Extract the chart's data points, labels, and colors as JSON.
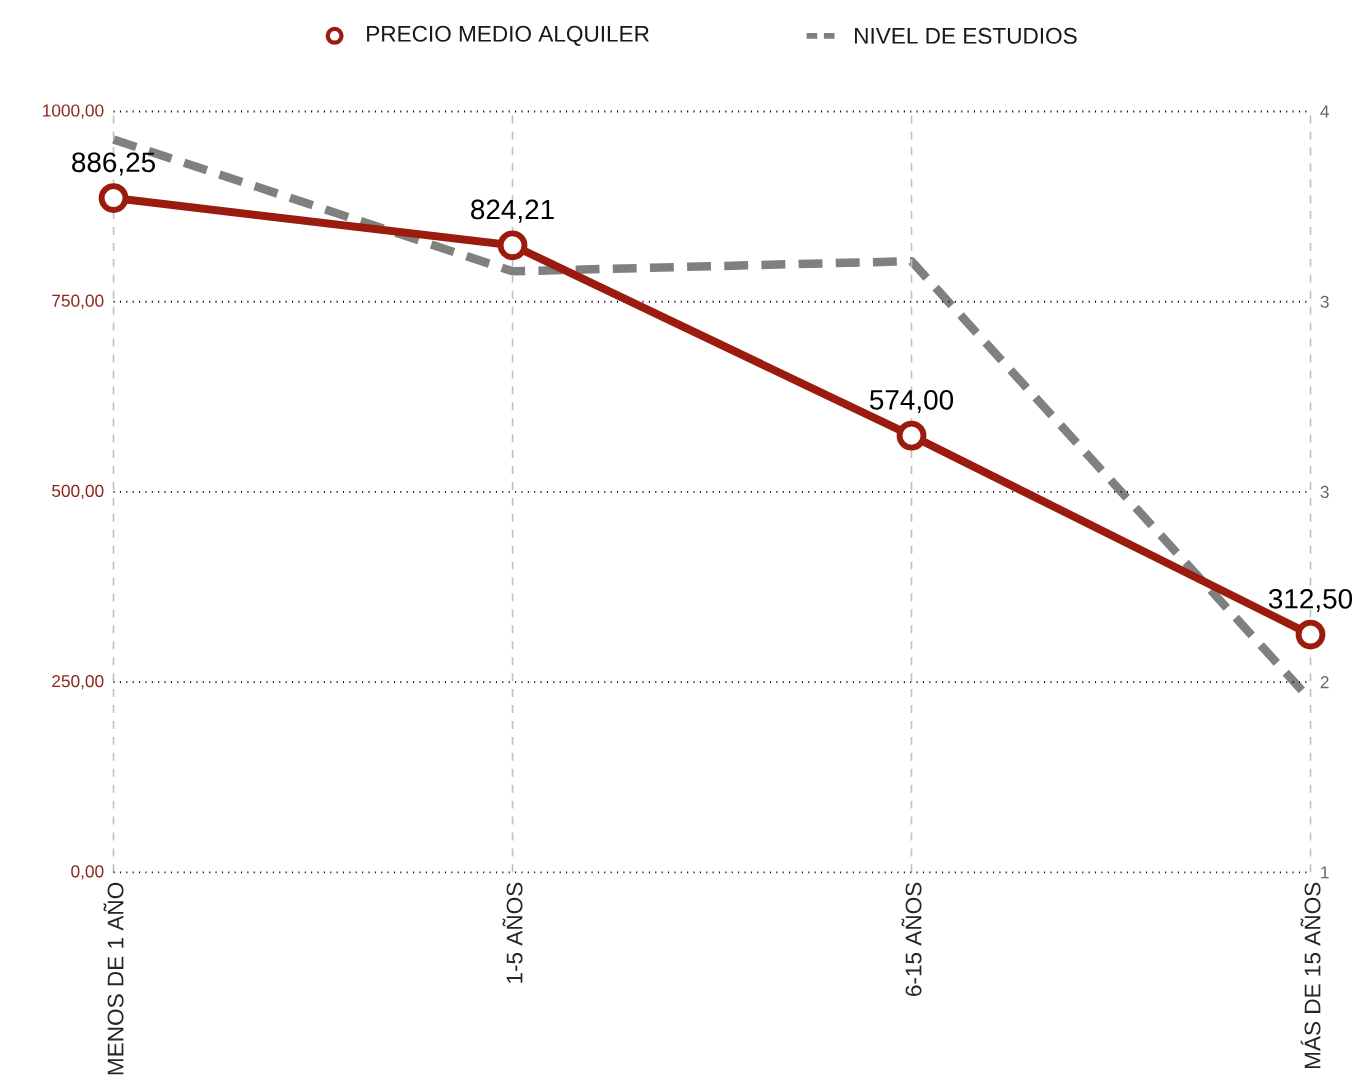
{
  "chart_data": {
    "type": "line",
    "categories": [
      "MENOS DE 1 AÑO",
      "1-5 AÑOS",
      "6-15 AÑOS",
      "MÁS DE 15 AÑOS"
    ],
    "series": [
      {
        "name": "PRECIO MEDIO ALQUILER",
        "color": "#9b1b0e",
        "values": [
          886.25,
          824.21,
          574.0,
          312.5
        ],
        "value_labels": [
          "886,25",
          "824,21",
          "574,00",
          "312,50"
        ],
        "marker": "circle",
        "line_style": "solid"
      },
      {
        "name": "NIVEL DE ESTUDIOS",
        "color": "#808080",
        "values": [
          3.89,
          3.37,
          3.41,
          1.68
        ],
        "axis": "y2",
        "marker": "none",
        "line_style": "dashed"
      }
    ],
    "ylim": [
      0,
      1000
    ],
    "yticks": [
      {
        "value": 0,
        "label": "0,00"
      },
      {
        "value": 250,
        "label": "250,00"
      },
      {
        "value": 500,
        "label": "500,00"
      },
      {
        "value": 750,
        "label": "750,00"
      },
      {
        "value": 1000,
        "label": "1000,00"
      }
    ],
    "y2lim": [
      1,
      4
    ],
    "y2ticks": [
      {
        "value": 1,
        "label": "1"
      },
      {
        "value": 1.75,
        "label": "2"
      },
      {
        "value": 2.5,
        "label": "3"
      },
      {
        "value": 3.25,
        "label": "3"
      },
      {
        "value": 4,
        "label": "4"
      }
    ],
    "grid": true,
    "legend": "top"
  }
}
